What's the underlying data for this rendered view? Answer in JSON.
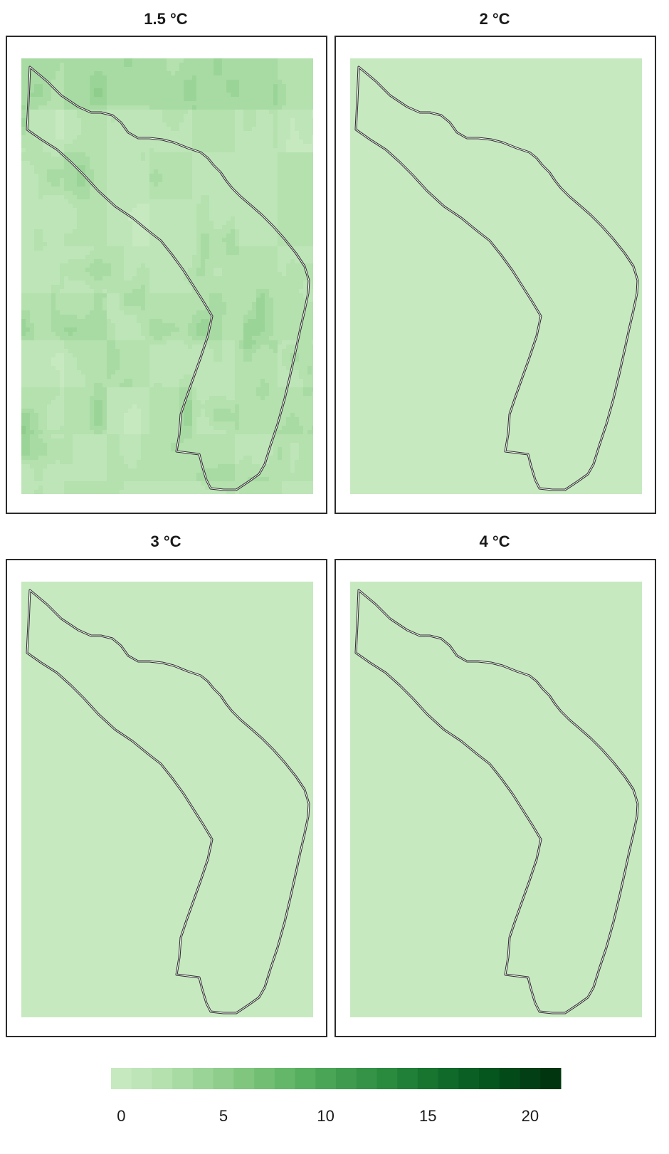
{
  "panels": [
    {
      "title": "1.5 °C",
      "variation": "high"
    },
    {
      "title": "2 °C",
      "variation": "low"
    },
    {
      "title": "3 °C",
      "variation": "none"
    },
    {
      "title": "4 °C",
      "variation": "none"
    }
  ],
  "colorbar": {
    "min": 0,
    "max": 22,
    "ticks": [
      "0",
      "5",
      "10",
      "15",
      "20"
    ],
    "tick_values": [
      0,
      5,
      10,
      15,
      20
    ],
    "colors": [
      "#c7e9c0",
      "#bee5b8",
      "#b4e1ae",
      "#a8dba3",
      "#9bd497",
      "#8ecd8b",
      "#80c67f",
      "#72bf73",
      "#64b769",
      "#56ae5f",
      "#4aa556",
      "#3f9c4e",
      "#349346",
      "#2a8a3e",
      "#208037",
      "#177530",
      "#106b2a",
      "#0a6024",
      "#05551e",
      "#034a19",
      "#023f14",
      "#01350f"
    ]
  },
  "colors": {
    "base": "#c7e9c0",
    "outline": "#2b2b2b"
  }
}
